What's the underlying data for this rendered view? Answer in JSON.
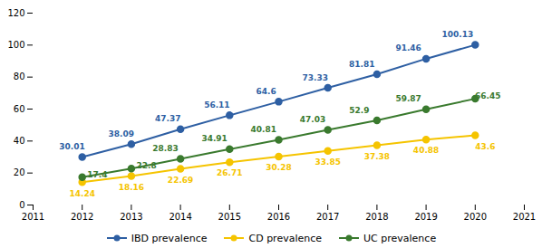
{
  "chart_data": {
    "type": "line",
    "x": [
      2012,
      2013,
      2014,
      2015,
      2016,
      2017,
      2018,
      2019,
      2020
    ],
    "series": [
      {
        "name": "IBD prevalence",
        "color": "#2e5fa3",
        "values": [
          30.01,
          38.09,
          47.37,
          56.11,
          64.6,
          73.33,
          81.81,
          91.46,
          100.13
        ]
      },
      {
        "name": "CD prevalence",
        "color": "#f5c400",
        "values": [
          14.24,
          18.16,
          22.69,
          26.71,
          30.28,
          33.85,
          37.38,
          40.88,
          43.6
        ]
      },
      {
        "name": "UC prevalence",
        "color": "#3a7a2e",
        "values": [
          17.4,
          22.8,
          28.83,
          34.91,
          40.81,
          47.03,
          52.9,
          59.87,
          66.45
        ]
      }
    ],
    "xlim": [
      2011,
      2021
    ],
    "xticks": [
      2011,
      2012,
      2013,
      2014,
      2015,
      2016,
      2017,
      2018,
      2019,
      2020,
      2021
    ],
    "ylim": [
      0,
      120
    ],
    "yticks": [
      0,
      20,
      40,
      60,
      80,
      100,
      120
    ],
    "marker": "circle",
    "data_labels": true,
    "grid": false,
    "legend": "bottom"
  }
}
